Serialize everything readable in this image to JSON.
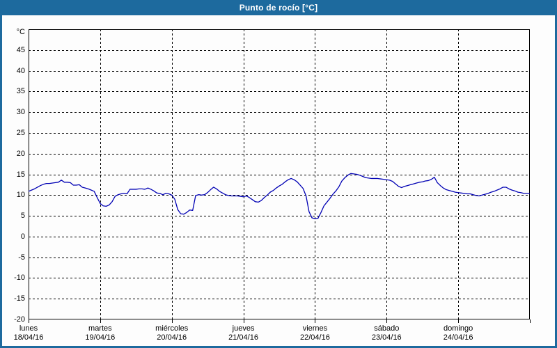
{
  "window": {
    "title": "Punto de rocío [°C]"
  },
  "colors": {
    "frame": "#1d6a9e",
    "title_text": "#ffffff",
    "background": "#fdfdfd",
    "grid": "#000000",
    "axis": "#000000",
    "line": "#0000b4",
    "label": "#000000"
  },
  "chart_data": {
    "type": "line",
    "title": "Punto de rocío [°C]",
    "y_unit_label": "°C",
    "ylim": [
      -20,
      50
    ],
    "y_ticks": [
      45,
      40,
      35,
      30,
      25,
      20,
      15,
      10,
      5,
      0,
      -5,
      -10,
      -15,
      -20
    ],
    "grid": "dashed",
    "legend": "none",
    "x_days": [
      {
        "name": "lunes",
        "date": "18/04/16"
      },
      {
        "name": "martes",
        "date": "19/04/16"
      },
      {
        "name": "miércoles",
        "date": "20/04/16"
      },
      {
        "name": "jueves",
        "date": "21/04/16"
      },
      {
        "name": "viernes",
        "date": "22/04/16"
      },
      {
        "name": "sábado",
        "date": "23/04/16"
      },
      {
        "name": "domingo",
        "date": "24/04/16"
      }
    ],
    "points_per_day": 24,
    "series": [
      {
        "name": "Punto de rocío",
        "color": "#0000b4",
        "values": [
          10.9,
          11.2,
          11.5,
          11.9,
          12.3,
          12.6,
          12.8,
          12.8,
          12.9,
          13.0,
          13.1,
          13.6,
          13.1,
          13.1,
          13.0,
          12.4,
          12.4,
          12.5,
          11.9,
          11.7,
          11.5,
          11.2,
          10.9,
          9.4,
          8.0,
          7.4,
          7.3,
          7.6,
          8.4,
          9.7,
          10.1,
          10.3,
          10.4,
          10.3,
          11.4,
          11.4,
          11.4,
          11.5,
          11.5,
          11.4,
          11.7,
          11.4,
          11.0,
          10.5,
          10.4,
          10.1,
          10.4,
          10.3,
          10.0,
          9.0,
          6.5,
          5.5,
          5.4,
          5.8,
          6.4,
          6.3,
          9.9,
          10.1,
          10.0,
          10.1,
          10.6,
          11.3,
          11.9,
          11.5,
          10.9,
          10.5,
          10.1,
          9.9,
          9.8,
          9.8,
          9.8,
          9.7,
          9.6,
          9.8,
          9.4,
          8.9,
          8.4,
          8.3,
          8.7,
          9.4,
          10.0,
          10.7,
          11.1,
          11.7,
          12.2,
          12.6,
          13.2,
          13.7,
          14.0,
          13.7,
          13.2,
          12.4,
          11.6,
          9.8,
          6.0,
          4.5,
          4.3,
          4.4,
          5.8,
          7.4,
          8.3,
          9.2,
          10.2,
          11.0,
          12.0,
          13.4,
          14.2,
          14.8,
          15.2,
          15.1,
          15.0,
          14.8,
          14.5,
          14.2,
          14.1,
          14.0,
          14.0,
          14.0,
          13.9,
          13.8,
          13.7,
          13.6,
          13.3,
          12.7,
          12.1,
          11.8,
          12.1,
          12.3,
          12.5,
          12.7,
          12.9,
          13.1,
          13.2,
          13.4,
          13.5,
          13.8,
          14.3,
          13.0,
          12.3,
          11.7,
          11.3,
          11.1,
          10.9,
          10.7,
          10.6,
          10.5,
          10.4,
          10.3,
          10.3,
          10.1,
          9.9,
          9.8,
          10.0,
          10.2,
          10.4,
          10.7,
          10.9,
          11.2,
          11.5,
          11.9,
          11.9,
          11.5,
          11.2,
          11.0,
          10.7,
          10.6,
          10.4,
          10.4,
          10.4
        ]
      }
    ]
  }
}
